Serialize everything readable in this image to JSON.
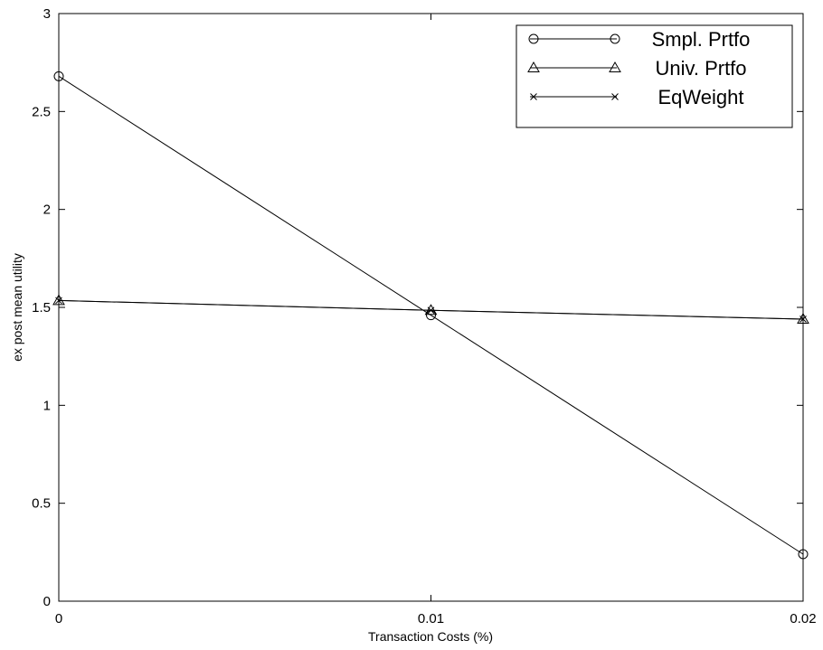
{
  "chart_data": {
    "type": "line",
    "title": "",
    "xlabel": "Transaction Costs (%)",
    "ylabel": "ex post mean utility",
    "x": [
      0,
      0.01,
      0.02
    ],
    "xlim": [
      0,
      0.02
    ],
    "ylim": [
      0,
      3
    ],
    "xticks": [
      "0",
      "0.01",
      "0.02"
    ],
    "yticks": [
      "0",
      "0.5",
      "1",
      "1.5",
      "2",
      "2.5",
      "3"
    ],
    "grid": false,
    "legend_position": "top-right",
    "series": [
      {
        "name": "Smpl. Prtfo",
        "marker": "circle",
        "values": [
          2.68,
          1.46,
          0.24
        ]
      },
      {
        "name": "Univ. Prtfo",
        "marker": "triangle",
        "values": [
          1.535,
          1.485,
          1.44
        ]
      },
      {
        "name": "EqWeight",
        "marker": "x",
        "values": [
          1.535,
          1.485,
          1.44
        ]
      }
    ]
  }
}
